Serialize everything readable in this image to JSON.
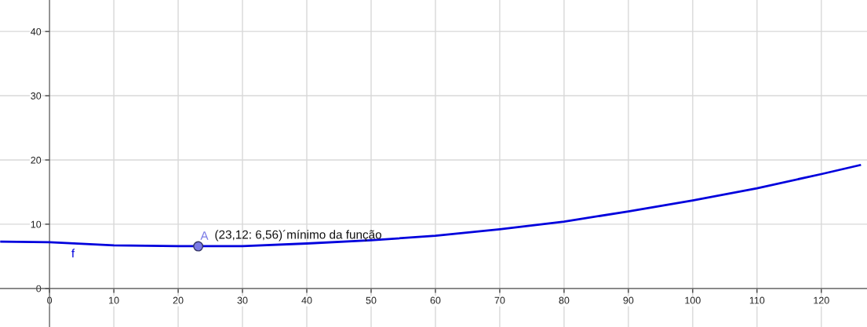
{
  "chart_data": {
    "type": "line",
    "xlim": [
      -7.7,
      127.1
    ],
    "ylim": [
      -6.0,
      44.9
    ],
    "xticks": [
      0,
      10,
      20,
      30,
      40,
      50,
      60,
      70,
      80,
      90,
      100,
      110,
      120
    ],
    "yticks": [
      0,
      10,
      20,
      30,
      40
    ],
    "grid": true,
    "series": [
      {
        "name": "f",
        "color": "#0000dd",
        "x": [
          -7.5,
          0,
          10,
          20,
          23,
          30,
          40,
          50,
          60,
          70,
          80,
          90,
          100,
          110,
          120,
          126
        ],
        "values": [
          7.3,
          7.2,
          6.7,
          6.6,
          6.6,
          6.6,
          7.0,
          7.5,
          8.2,
          9.2,
          10.4,
          12.0,
          13.7,
          15.6,
          17.8,
          19.2
        ]
      },
      {
        "name": "A",
        "type": "scatter",
        "color": "#7b7be6",
        "x": [
          23.12
        ],
        "values": [
          6.56
        ]
      }
    ],
    "annotations": [
      {
        "text": "(23,12: 6,56)´mínimo da função",
        "x": 23.12,
        "y": 6.56
      }
    ]
  }
}
